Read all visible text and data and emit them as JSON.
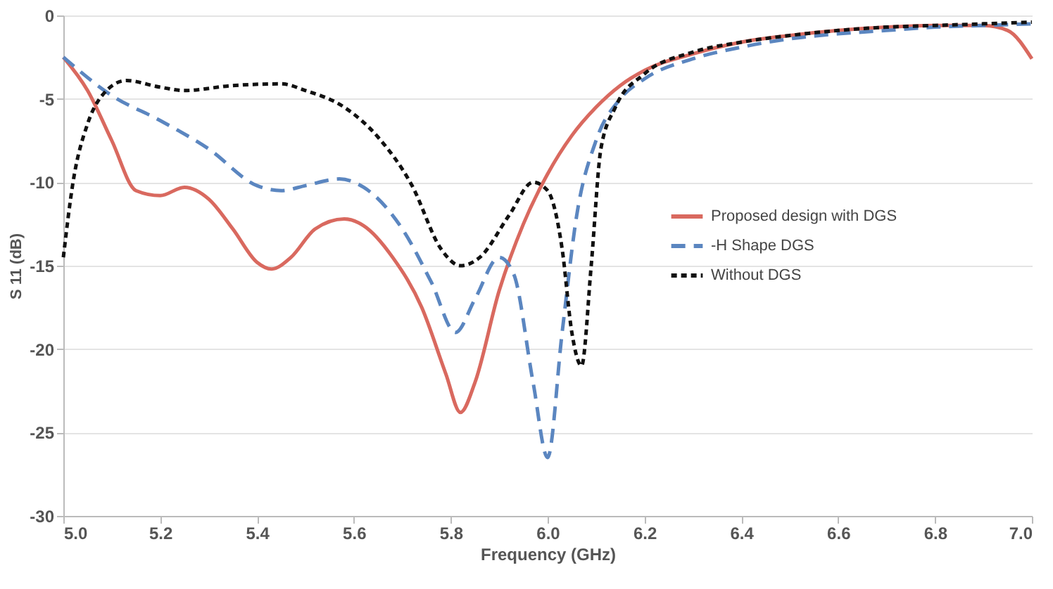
{
  "chart_data": {
    "type": "line",
    "xlabel": "Frequency (GHz)",
    "ylabel": "S 11 (dB)",
    "xlim": [
      5.0,
      7.0
    ],
    "xticks": [
      {
        "value": 5.0,
        "label": "5.0"
      },
      5.2,
      5.4,
      5.6,
      5.8,
      {
        "value": 6.0,
        "label": "6.0"
      },
      6.2,
      6.4,
      6.6,
      6.8,
      {
        "value": 7.0,
        "label": "7.0"
      }
    ],
    "ylim": [
      -30,
      0
    ],
    "yticks": [
      -30,
      -25,
      -20,
      -15,
      -10,
      -5,
      0
    ],
    "grid": "y",
    "legend": "right",
    "series": [
      {
        "name": "Proposed design with DGS",
        "color": "#d9695f",
        "line_style": "solid",
        "x": [
          5.0,
          5.05,
          5.1,
          5.15,
          5.2,
          5.25,
          5.3,
          5.35,
          5.4,
          5.43,
          5.47,
          5.52,
          5.58,
          5.62,
          5.68,
          5.74,
          5.79,
          5.82,
          5.85,
          5.9,
          5.95,
          6.0,
          6.05,
          6.1,
          6.15,
          6.2,
          6.3,
          6.4,
          6.5,
          6.6,
          6.7,
          6.8,
          6.9,
          6.95,
          7.0
        ],
        "values": [
          -2.5,
          -4.5,
          -7.5,
          -10.5,
          -10.8,
          -10.3,
          -11,
          -12.8,
          -14.8,
          -15.2,
          -14.5,
          -12.8,
          -12.2,
          -12.6,
          -14.5,
          -17.5,
          -21.5,
          -23.8,
          -22,
          -16.5,
          -12.5,
          -9.5,
          -7.2,
          -5.5,
          -4.2,
          -3.3,
          -2.3,
          -1.6,
          -1.2,
          -0.9,
          -0.7,
          -0.6,
          -0.6,
          -0.9,
          -2.6
        ]
      },
      {
        "name": "-H Shape DGS",
        "color": "#5b86c0",
        "line_style": "dashed",
        "x": [
          5.0,
          5.1,
          5.2,
          5.3,
          5.4,
          5.45,
          5.5,
          5.57,
          5.62,
          5.7,
          5.76,
          5.81,
          5.85,
          5.9,
          5.93,
          5.97,
          6.0,
          6.03,
          6.06,
          6.1,
          6.15,
          6.2,
          6.3,
          6.4,
          6.5,
          6.6,
          6.7,
          6.8,
          6.9,
          7.0
        ],
        "values": [
          -2.5,
          -4.8,
          -6.3,
          -8,
          -10.2,
          -10.5,
          -10.2,
          -9.8,
          -10.3,
          -12.8,
          -16,
          -19,
          -17,
          -14.5,
          -15.5,
          -22,
          -26.5,
          -19,
          -12,
          -7.5,
          -5,
          -3.8,
          -2.6,
          -1.9,
          -1.4,
          -1.1,
          -0.9,
          -0.7,
          -0.6,
          -0.5
        ]
      },
      {
        "name": "Without DGS",
        "color": "#111111",
        "line_style": "dotted",
        "x": [
          5.0,
          5.02,
          5.05,
          5.08,
          5.13,
          5.2,
          5.25,
          5.35,
          5.45,
          5.5,
          5.58,
          5.65,
          5.72,
          5.78,
          5.82,
          5.86,
          5.92,
          5.97,
          6.0,
          6.03,
          6.05,
          6.07,
          6.09,
          6.11,
          6.14,
          6.2,
          6.3,
          6.4,
          6.5,
          6.6,
          6.7,
          6.8,
          6.9,
          7.0
        ],
        "values": [
          -14.5,
          -10,
          -6.5,
          -4.8,
          -3.9,
          -4.3,
          -4.5,
          -4.2,
          -4.1,
          -4.5,
          -5.5,
          -7.3,
          -10.2,
          -14,
          -15,
          -14.5,
          -12,
          -10,
          -10.5,
          -14,
          -19,
          -21,
          -15,
          -8,
          -5.5,
          -3.5,
          -2.2,
          -1.6,
          -1.2,
          -0.9,
          -0.7,
          -0.6,
          -0.5,
          -0.4
        ]
      }
    ]
  }
}
